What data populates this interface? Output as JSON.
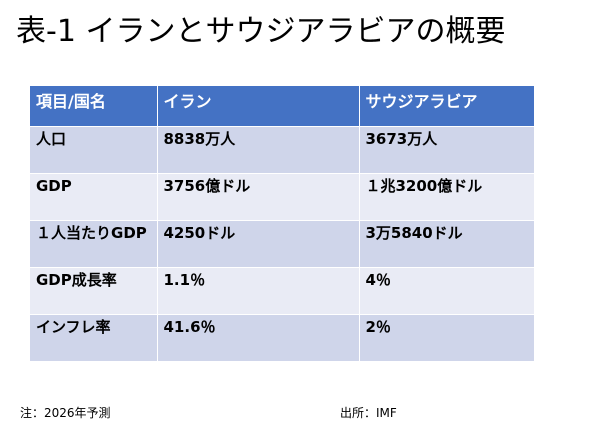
{
  "title": "表-1 イランとサウジアラビアの概要",
  "table": {
    "headers": [
      "項目/国名",
      "イラン",
      "サウジアラビア"
    ],
    "rows": [
      [
        "人口",
        "8838万人",
        "3673万人"
      ],
      [
        "GDP",
        "3756億ドル",
        "１兆3200億ドル"
      ],
      [
        "１人当たりGDP",
        "4250ドル",
        "3万5840ドル"
      ],
      [
        "GDP成長率",
        "1.1％",
        "4％"
      ],
      [
        "インフレ率",
        "41.6％",
        "2％"
      ]
    ]
  },
  "footer": {
    "note": "注：2026年予測",
    "source": "出所：IMF"
  },
  "colors": {
    "header_bg": "#4472c4",
    "row_odd": "#cfd5ea",
    "row_even": "#e9ebf5"
  }
}
